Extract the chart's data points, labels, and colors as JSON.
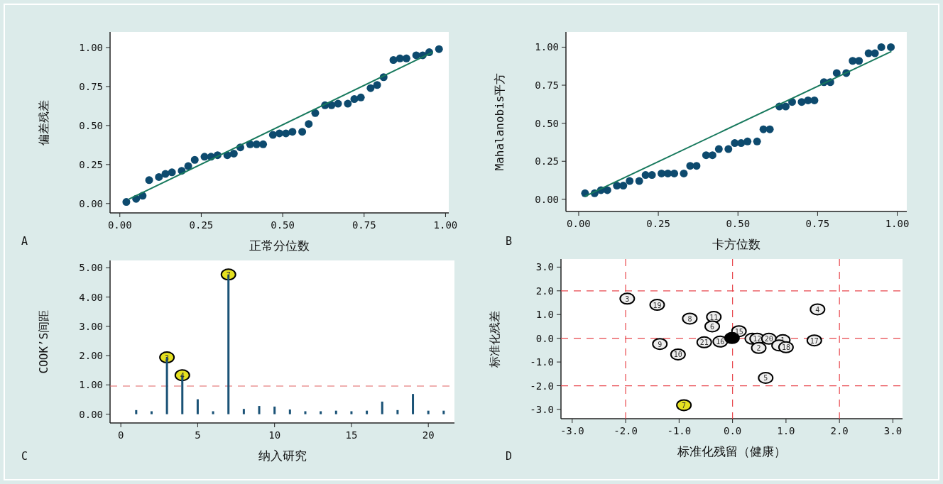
{
  "chart_data": [
    {
      "type": "scatter",
      "xlabel": "正常分位数",
      "ylabel": "偏差残差",
      "marker": "circle",
      "annotations": [
        "A"
      ],
      "xlim": [
        -0.03,
        1.01
      ],
      "ylim": [
        -0.06,
        1.1
      ],
      "xticks": [
        {
          "value": 0,
          "label": "0.00"
        },
        {
          "value": 0.25,
          "label": "0.25"
        },
        {
          "value": 0.5,
          "label": "0.50"
        },
        {
          "value": 0.75,
          "label": "0.75"
        },
        {
          "value": 1,
          "label": "1.00"
        }
      ],
      "yticks": [
        {
          "value": 0,
          "label": "0.00"
        },
        {
          "value": 0.25,
          "label": "0.25"
        },
        {
          "value": 0.5,
          "label": "0.50"
        },
        {
          "value": 0.75,
          "label": "0.75"
        },
        {
          "value": 1,
          "label": "1.00"
        }
      ],
      "series": [
        {
          "type": "scatter",
          "color": "#0d4a6e",
          "x": [
            0.02,
            0.05,
            0.07,
            0.09,
            0.12,
            0.14,
            0.16,
            0.19,
            0.21,
            0.23,
            0.26,
            0.28,
            0.3,
            0.33,
            0.35,
            0.37,
            0.4,
            0.42,
            0.44,
            0.47,
            0.49,
            0.51,
            0.53,
            0.56,
            0.58,
            0.6,
            0.63,
            0.65,
            0.67,
            0.7,
            0.72,
            0.74,
            0.77,
            0.79,
            0.81,
            0.84,
            0.86,
            0.88,
            0.91,
            0.93,
            0.95,
            0.98
          ],
          "values": [
            0.01,
            0.03,
            0.05,
            0.15,
            0.17,
            0.19,
            0.2,
            0.21,
            0.24,
            0.28,
            0.3,
            0.3,
            0.31,
            0.31,
            0.32,
            0.36,
            0.38,
            0.38,
            0.38,
            0.44,
            0.45,
            0.45,
            0.46,
            0.46,
            0.51,
            0.58,
            0.63,
            0.63,
            0.64,
            0.64,
            0.67,
            0.68,
            0.74,
            0.76,
            0.81,
            0.92,
            0.93,
            0.93,
            0.95,
            0.95,
            0.97,
            0.99
          ]
        },
        {
          "type": "line",
          "marker": "none",
          "color": "#17795d",
          "x": [
            0.03,
            0.96
          ],
          "values": [
            0.03,
            0.97
          ]
        }
      ]
    },
    {
      "type": "scatter",
      "xlabel": "卡方位数",
      "ylabel": "Mahalanobis平方",
      "marker": "circle",
      "annotations": [
        "B"
      ],
      "xlim": [
        -0.04,
        1.03
      ],
      "ylim": [
        -0.08,
        1.1
      ],
      "xticks": [
        {
          "value": 0,
          "label": "0.00"
        },
        {
          "value": 0.25,
          "label": "0.25"
        },
        {
          "value": 0.5,
          "label": "0.50"
        },
        {
          "value": 0.75,
          "label": "0.75"
        },
        {
          "value": 1,
          "label": "1.00"
        }
      ],
      "yticks": [
        {
          "value": 0,
          "label": "0.00"
        },
        {
          "value": 0.25,
          "label": "0.25"
        },
        {
          "value": 0.5,
          "label": "0.50"
        },
        {
          "value": 0.75,
          "label": "0.75"
        },
        {
          "value": 1,
          "label": "1.00"
        }
      ],
      "series": [
        {
          "type": "scatter",
          "color": "#0d4a6e",
          "x": [
            0.02,
            0.05,
            0.07,
            0.09,
            0.12,
            0.14,
            0.16,
            0.19,
            0.21,
            0.23,
            0.26,
            0.28,
            0.3,
            0.33,
            0.35,
            0.37,
            0.4,
            0.42,
            0.44,
            0.47,
            0.49,
            0.51,
            0.53,
            0.56,
            0.58,
            0.6,
            0.63,
            0.65,
            0.67,
            0.7,
            0.72,
            0.74,
            0.77,
            0.79,
            0.81,
            0.84,
            0.86,
            0.88,
            0.91,
            0.93,
            0.95,
            0.98
          ],
          "values": [
            0.04,
            0.04,
            0.06,
            0.06,
            0.09,
            0.09,
            0.12,
            0.12,
            0.16,
            0.16,
            0.17,
            0.17,
            0.17,
            0.17,
            0.22,
            0.22,
            0.29,
            0.29,
            0.33,
            0.33,
            0.37,
            0.37,
            0.38,
            0.38,
            0.46,
            0.46,
            0.61,
            0.61,
            0.64,
            0.64,
            0.65,
            0.65,
            0.77,
            0.77,
            0.83,
            0.83,
            0.91,
            0.91,
            0.96,
            0.96,
            1.0,
            1.0
          ]
        },
        {
          "type": "line",
          "marker": "none",
          "color": "#17795d",
          "x": [
            0.02,
            0.98
          ],
          "values": [
            0.02,
            0.97
          ]
        }
      ]
    },
    {
      "type": "bar",
      "xlabel": "纳入研究",
      "ylabel": "COOK’S间距",
      "marker": "circle",
      "xlim": [
        -0.7,
        21.7
      ],
      "ylim": [
        -0.3,
        5.25
      ],
      "xticks": [
        0,
        5,
        10,
        15,
        20
      ],
      "yticks": [
        {
          "value": 0,
          "label": "0.00"
        },
        {
          "value": 1,
          "label": "1.00"
        },
        {
          "value": 2,
          "label": "2.00"
        },
        {
          "value": 3,
          "label": "3.00"
        },
        {
          "value": 4,
          "label": "4.00"
        },
        {
          "value": 5,
          "label": "5.00"
        }
      ],
      "series": [
        {
          "type": "scatter",
          "color": "#e5e020",
          "x": [
            3,
            4,
            7
          ],
          "values": [
            1.94,
            1.33,
            4.77
          ]
        },
        {
          "type": "bar",
          "color": "#1a5276",
          "x": [
            1,
            2,
            3,
            4,
            5,
            6,
            7,
            8,
            9,
            10,
            11,
            12,
            13,
            14,
            15,
            16,
            17,
            18,
            19,
            20,
            21
          ],
          "values": [
            0.14,
            0.1,
            1.94,
            1.33,
            0.51,
            0.1,
            4.77,
            0.18,
            0.28,
            0.26,
            0.16,
            0.1,
            0.1,
            0.12,
            0.1,
            0.12,
            0.43,
            0.14,
            0.69,
            0.12,
            0.12
          ]
        }
      ],
      "ref_lines": [
        {
          "axis": "y",
          "value": 0.96,
          "color": "#e06060",
          "line_style": "dashed"
        }
      ],
      "annotations": [
        "C",
        {
          "text": "3",
          "x": 3,
          "y": 1.94
        },
        {
          "text": "4",
          "x": 4,
          "y": 1.33
        },
        {
          "text": "7",
          "x": 7,
          "y": 4.77
        }
      ]
    },
    {
      "type": "scatter",
      "xlabel": "标准化残留（健康）",
      "ylabel": "标准化残差",
      "marker": "circle",
      "xlim": [
        -3.21,
        3.18
      ],
      "ylim": [
        -3.39,
        3.34
      ],
      "xticks": [
        {
          "value": -3,
          "label": "-3.0"
        },
        {
          "value": -2,
          "label": "-2.0"
        },
        {
          "value": -1,
          "label": "-1.0"
        },
        {
          "value": 0,
          "label": "0.0"
        },
        {
          "value": 1,
          "label": "1.0"
        },
        {
          "value": 2,
          "label": "2.0"
        },
        {
          "value": 3,
          "label": "3.0"
        }
      ],
      "yticks": [
        {
          "value": -3,
          "label": "-3.0"
        },
        {
          "value": -2,
          "label": "-2.0"
        },
        {
          "value": -1,
          "label": "-1.0"
        },
        {
          "value": 0,
          "label": "0.0"
        },
        {
          "value": 1,
          "label": "1.0"
        },
        {
          "value": 2,
          "label": "2.0"
        },
        {
          "value": 3,
          "label": "3.0"
        }
      ],
      "series": [
        {
          "type": "scatter",
          "x": [
            -1.97,
            -1.41,
            -0.8,
            -0.35,
            -0.38,
            0.12,
            -1.36,
            -0.53,
            -0.23,
            -0.01,
            0.37,
            0.46,
            0.68,
            0.94,
            0.87,
            1.0,
            0.49,
            1.53,
            1.59,
            -1.02,
            0.62,
            -0.91
          ],
          "values": [
            1.67,
            1.41,
            0.83,
            0.9,
            0.5,
            0.3,
            -0.24,
            -0.17,
            -0.14,
            0.01,
            -0.02,
            -0.02,
            -0.02,
            -0.08,
            -0.3,
            -0.38,
            -0.41,
            -0.09,
            1.22,
            -0.68,
            -1.67,
            -2.82
          ],
          "colors": [
            "#eeeeee",
            "#eeeeee",
            "#eeeeee",
            "#eeeeee",
            "#eeeeee",
            "#eeeeee",
            "#eeeeee",
            "#eeeeee",
            "#eeeeee",
            "#000000",
            "#eeeeee",
            "#eeeeee",
            "#eeeeee",
            "#eeeeee",
            "#eeeeee",
            "#eeeeee",
            "#eeeeee",
            "#eeeeee",
            "#eeeeee",
            "#eeeeee",
            "#eeeeee",
            "#e5e020"
          ]
        }
      ],
      "ref_lines": [
        {
          "axis": "x",
          "value": -2,
          "color": "#e8474d",
          "line_style": "dashed"
        },
        {
          "axis": "x",
          "value": 0,
          "color": "#e8474d",
          "line_style": "dashed"
        },
        {
          "axis": "x",
          "value": 2,
          "color": "#e8474d",
          "line_style": "dashed"
        },
        {
          "axis": "y",
          "value": -2,
          "color": "#e8474d",
          "line_style": "dashed"
        },
        {
          "axis": "y",
          "value": 0,
          "color": "#e8474d",
          "line_style": "dashed"
        },
        {
          "axis": "y",
          "value": 2,
          "color": "#e8474d",
          "line_style": "dashed"
        }
      ],
      "annotations": [
        "D",
        {
          "text": "3",
          "x": -1.97,
          "y": 1.67
        },
        {
          "text": "19",
          "x": -1.41,
          "y": 1.41
        },
        {
          "text": "8",
          "x": -0.8,
          "y": 0.83
        },
        {
          "text": "11",
          "x": -0.35,
          "y": 0.9
        },
        {
          "text": "6",
          "x": -0.38,
          "y": 0.5
        },
        {
          "text": "15",
          "x": 0.12,
          "y": 0.3
        },
        {
          "text": "9",
          "x": -1.36,
          "y": -0.24
        },
        {
          "text": "21",
          "x": -0.53,
          "y": -0.17
        },
        {
          "text": "16",
          "x": -0.23,
          "y": -0.14
        },
        {
          "text": "12",
          "x": 0.46,
          "y": -0.02
        },
        {
          "text": "20",
          "x": 0.68,
          "y": -0.02
        },
        {
          "text": "1",
          "x": 0.94,
          "y": -0.08
        },
        {
          "text": "18",
          "x": 1.0,
          "y": -0.38
        },
        {
          "text": "2",
          "x": 0.49,
          "y": -0.41
        },
        {
          "text": "17",
          "x": 1.53,
          "y": -0.09
        },
        {
          "text": "4",
          "x": 1.59,
          "y": 1.22
        },
        {
          "text": "10",
          "x": -1.02,
          "y": -0.68
        },
        {
          "text": "5",
          "x": 0.62,
          "y": -1.67
        },
        {
          "text": "7",
          "x": -0.91,
          "y": -2.82
        }
      ]
    }
  ]
}
